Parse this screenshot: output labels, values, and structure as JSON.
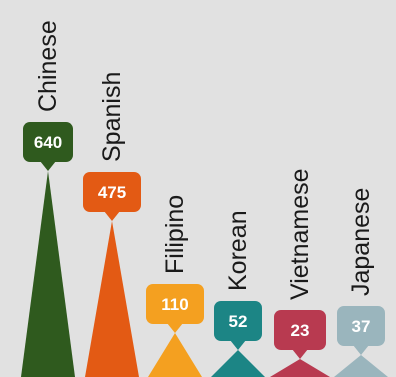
{
  "chart_data": {
    "type": "bar",
    "categories": [
      "Chinese",
      "Spanish",
      "Filipino",
      "Korean",
      "Vietnamese",
      "Japanese"
    ],
    "values": [
      640,
      475,
      110,
      52,
      23,
      37
    ],
    "colors": [
      "#2f5a1e",
      "#e35a14",
      "#f4a020",
      "#1c8585",
      "#b83a50",
      "#9ab5bd"
    ],
    "title": "",
    "xlabel": "",
    "ylabel": ""
  }
}
